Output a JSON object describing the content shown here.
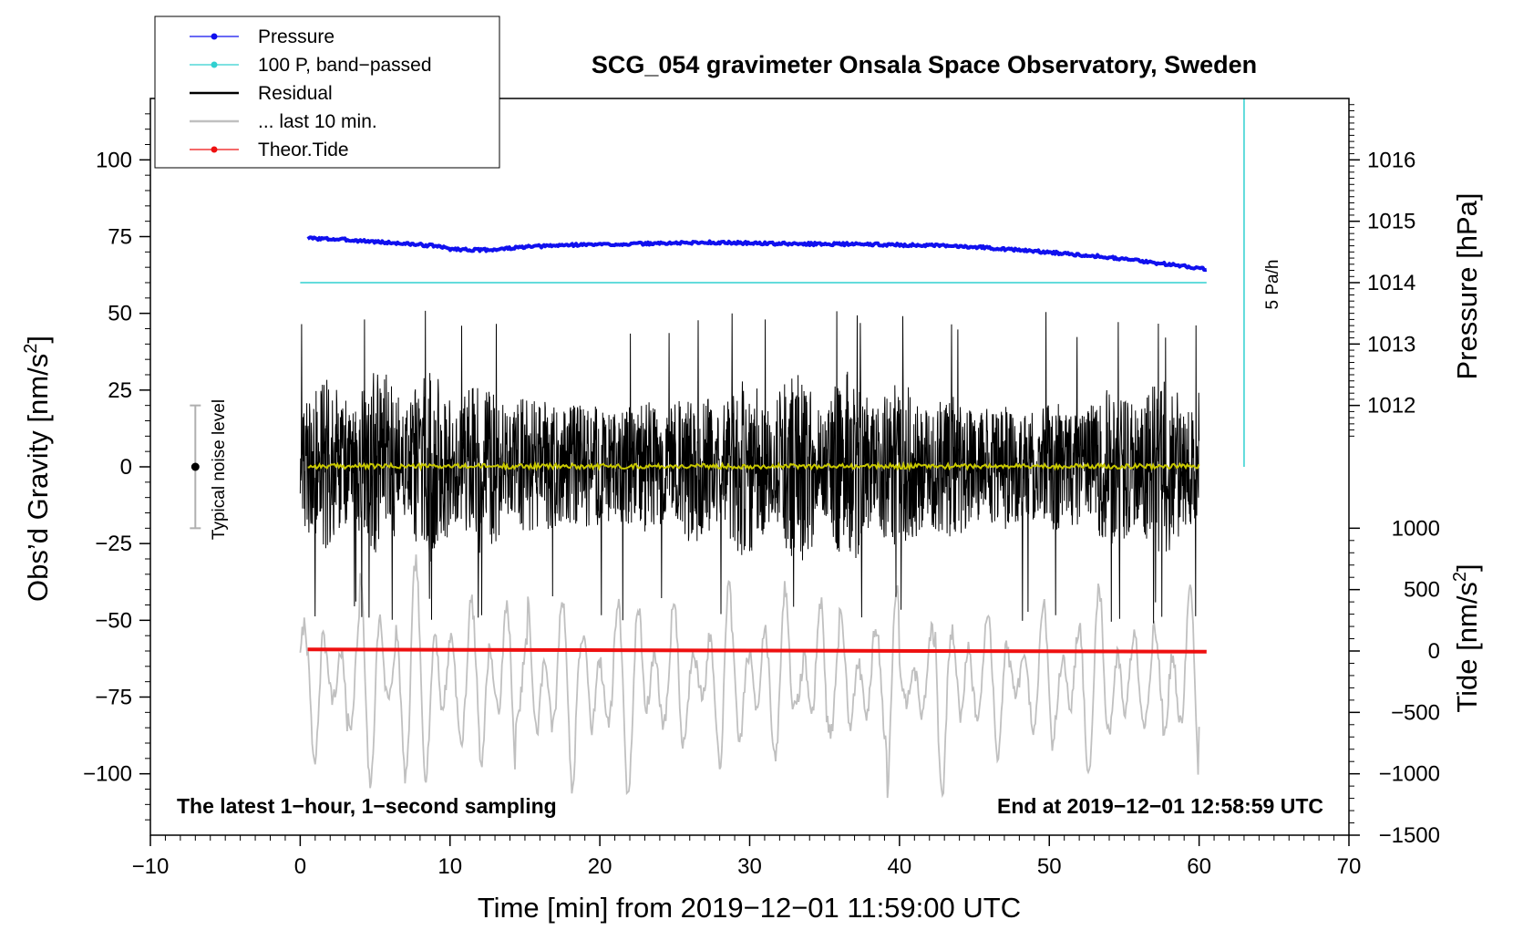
{
  "chart_data": {
    "type": "line",
    "title": "SCG_054 gravimeter Onsala Space Observatory, Sweden",
    "xlabel": "Time [min] from 2019−12−01 11:59:00 UTC",
    "ylabel_left": "Obs’d Gravity [nm/s",
    "ylabel_left_sup": "2",
    "ylabel_left_close": "]",
    "ylabel_right_pressure": "Pressure [hPa]",
    "ylabel_right_tide": "Tide [nm/s",
    "ylabel_right_tide_sup": "2",
    "ylabel_right_tide_close": "]",
    "note_left": "The latest 1−hour, 1−second sampling",
    "note_right": "End at 2019−12−01 12:58:59 UTC",
    "xlim": [
      -10,
      70
    ],
    "ylim": [
      -120,
      120
    ],
    "x_ticks": [
      -10,
      0,
      10,
      20,
      30,
      40,
      50,
      60,
      70
    ],
    "x_tick_labels": [
      "−10",
      "0",
      "10",
      "20",
      "30",
      "40",
      "50",
      "60",
      "70"
    ],
    "y_ticks": [
      100,
      75,
      50,
      25,
      0,
      -25,
      -50,
      -75,
      -100
    ],
    "y_tick_labels": [
      "100",
      "75",
      "50",
      "25",
      "0",
      "−25",
      "−50",
      "−75",
      "−100"
    ],
    "pressure_axis": {
      "ticks": [
        1016,
        1015,
        1014,
        1013,
        1012
      ],
      "tick_labels": [
        "1016",
        "1015",
        "1014",
        "1013",
        "1012"
      ],
      "gravity_at_1016": 100,
      "gravity_per_hpa": 20
    },
    "tide_axis": {
      "ticks": [
        1000,
        500,
        0,
        -500,
        -1000,
        -1500
      ],
      "tick_labels": [
        "1000",
        "500",
        "0",
        "−500",
        "−1000",
        "−1500"
      ],
      "gravity_at_0": -60,
      "gravity_per_500": 20
    },
    "legend": {
      "position": "top-left",
      "entries": [
        {
          "label": "Pressure",
          "color": "#1010ee",
          "marker": true
        },
        {
          "label": "100 P, band−passed",
          "color": "#30d0d0",
          "marker": true
        },
        {
          "label": "Residual",
          "color": "#000000",
          "marker": false
        },
        {
          "label": "... last 10 min.",
          "color": "#c0c0c0",
          "marker": false
        },
        {
          "label": "Theor.Tide",
          "color": "#ee1010",
          "marker": true
        }
      ]
    },
    "series": [
      {
        "name": "Pressure",
        "color": "#1010ee",
        "x": [
          0.5,
          3,
          6,
          9,
          10,
          12,
          13,
          15,
          18,
          21,
          24,
          27,
          30,
          33,
          36,
          39,
          42,
          45,
          48,
          51,
          54,
          57,
          60.5
        ],
        "y": [
          74.5,
          74,
          73,
          72,
          71,
          70.6,
          70.8,
          71.6,
          72.3,
          72.5,
          72.8,
          73.1,
          72.9,
          72.6,
          72.6,
          72.4,
          72.1,
          71.7,
          70.6,
          69.5,
          68.3,
          66.5,
          64.5
        ]
      },
      {
        "name": "100 P, band−passed",
        "color": "#30d0d0",
        "x": [
          0,
          60.5
        ],
        "y": [
          60,
          60
        ]
      },
      {
        "name": "Residual",
        "color": "#000000",
        "x_range": [
          0,
          60
        ],
        "center": 0,
        "amplitude": 32
      },
      {
        "name": "Residual smoothed",
        "color": "#c8c800",
        "x_range": [
          0.5,
          60
        ],
        "center": 0.2,
        "amplitude": 0.8
      },
      {
        "name": "... last 10 min.",
        "color": "#c0c0c0",
        "x_range": [
          0,
          60
        ],
        "center": -70,
        "amplitude": 33
      },
      {
        "name": "Theor.Tide",
        "color": "#ee1010",
        "x": [
          0.5,
          60.5
        ],
        "y": [
          -59.5,
          -60.2
        ]
      }
    ],
    "noise_level": {
      "label": "Typical noise level",
      "x": -7,
      "y": 0,
      "error": 20
    },
    "pressure_rate": {
      "label": "5 Pa/h",
      "x": 63,
      "y_from": 0,
      "y_to": 120
    }
  }
}
